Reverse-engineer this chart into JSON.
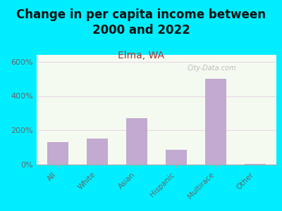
{
  "title": "Change in per capita income between\n2000 and 2022",
  "subtitle": "Elma, WA",
  "categories": [
    "All",
    "White",
    "Asian",
    "Hispanic",
    "Multirace",
    "Other"
  ],
  "values": [
    130,
    150,
    270,
    85,
    500,
    5
  ],
  "bar_color": "#c2aad0",
  "background_outer": "#00eeff",
  "background_plot": "#f5faf0",
  "title_fontsize": 12,
  "title_color": "#111111",
  "subtitle_fontsize": 10,
  "subtitle_color": "#aa3333",
  "tick_label_color": "#666666",
  "ytick_labels": [
    "0%",
    "200%",
    "400%",
    "600%"
  ],
  "ytick_values": [
    0,
    200,
    400,
    600
  ],
  "ylim": [
    0,
    640
  ],
  "watermark": "City-Data.com",
  "watermark_color": "#b0b0b0"
}
